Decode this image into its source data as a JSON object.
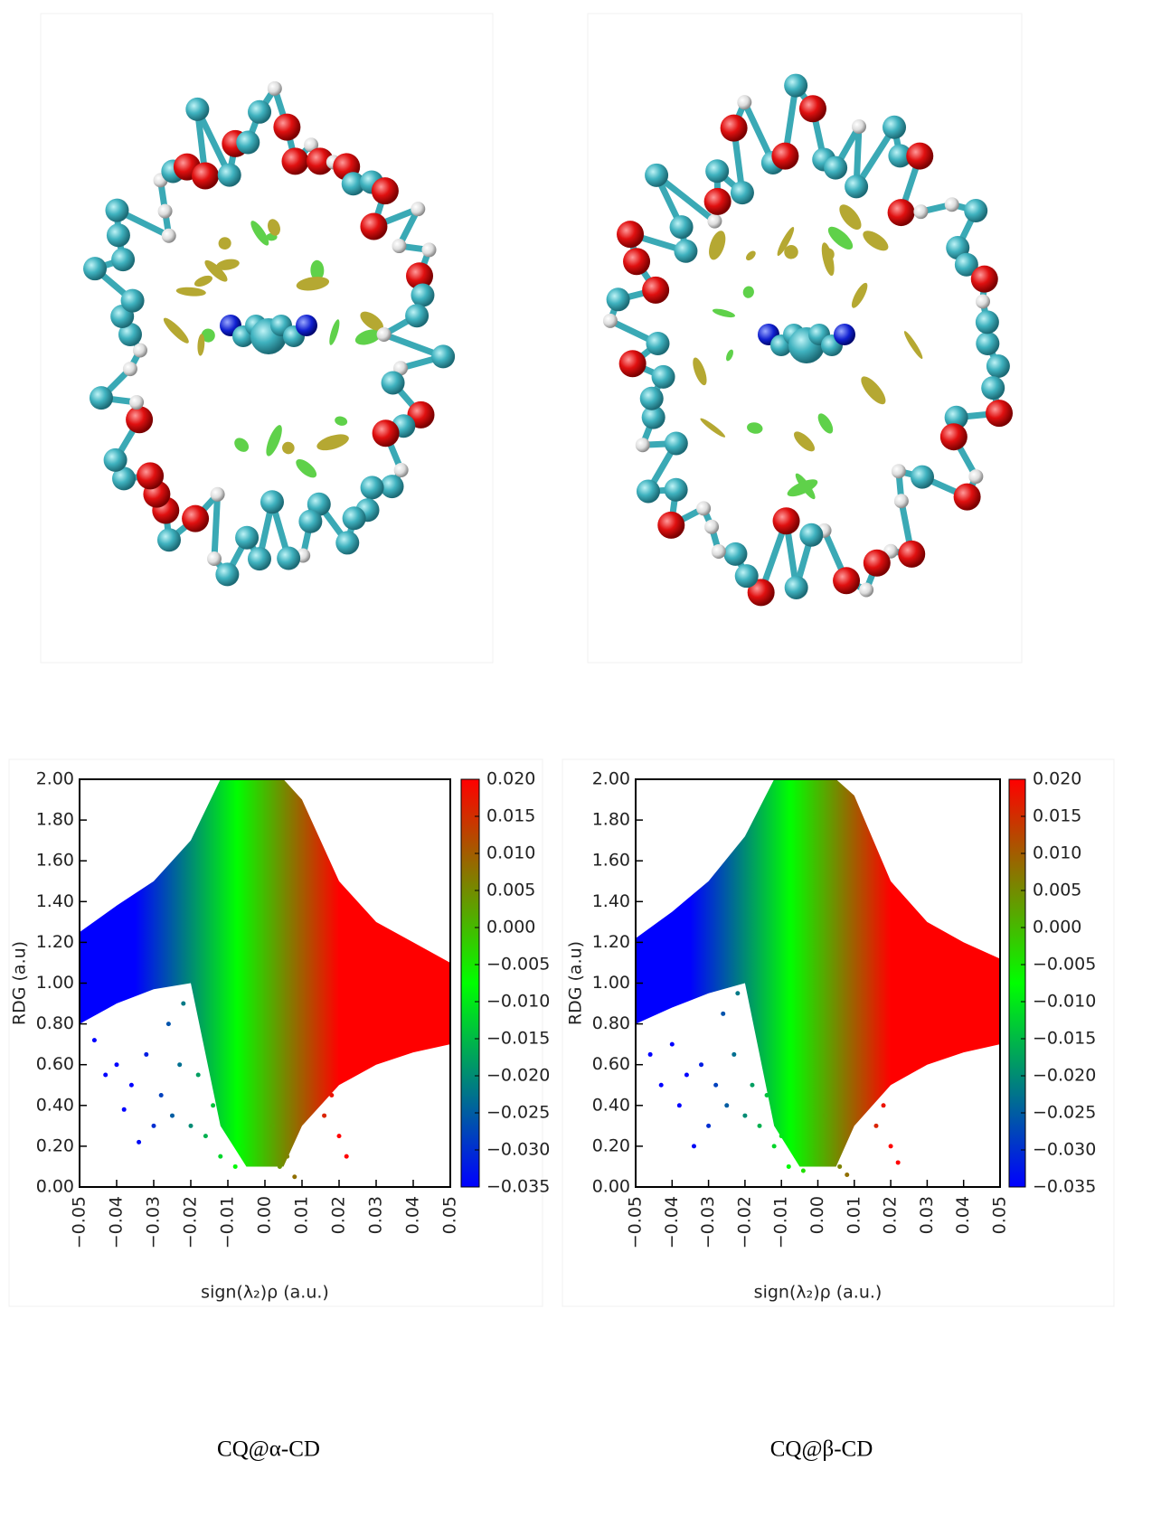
{
  "chart_data": [
    {
      "type": "scatter",
      "caption": "CQ@α-CD",
      "xlabel": "sign(λ₂)ρ (a.u.)",
      "ylabel": "RDG (a.u)",
      "xlim": [
        -0.05,
        0.05
      ],
      "ylim": [
        0,
        2
      ],
      "xticks": [
        {
          "value": -0.05,
          "label": "−0.05"
        },
        {
          "value": -0.04,
          "label": "−0.04"
        },
        {
          "value": -0.03,
          "label": "−0.03"
        },
        {
          "value": -0.02,
          "label": "−0.02"
        },
        {
          "value": -0.01,
          "label": "−0.01"
        },
        {
          "value": 0,
          "label": "0.00"
        },
        {
          "value": 0.01,
          "label": "0.01"
        },
        {
          "value": 0.02,
          "label": "0.02"
        },
        {
          "value": 0.03,
          "label": "0.03"
        },
        {
          "value": 0.04,
          "label": "0.04"
        },
        {
          "value": 0.05,
          "label": "0.05"
        }
      ],
      "yticks": [
        {
          "value": 0,
          "label": "0.00"
        },
        {
          "value": 0.2,
          "label": "0.20"
        },
        {
          "value": 0.4,
          "label": "0.40"
        },
        {
          "value": 0.6,
          "label": "0.60"
        },
        {
          "value": 0.8,
          "label": "0.80"
        },
        {
          "value": 1,
          "label": "1.00"
        },
        {
          "value": 1.2,
          "label": "1.20"
        },
        {
          "value": 1.4,
          "label": "1.40"
        },
        {
          "value": 1.6,
          "label": "1.60"
        },
        {
          "value": 1.8,
          "label": "1.80"
        },
        {
          "value": 2,
          "label": "2.00"
        }
      ],
      "colorbar": {
        "lim": [
          -0.035,
          0.02
        ],
        "colors": [
          "#0000ff",
          "#00ff00",
          "#ff0000"
        ],
        "ticks": [
          {
            "value": 0.02,
            "label": "0.020"
          },
          {
            "value": 0.015,
            "label": "0.015"
          },
          {
            "value": 0.01,
            "label": "0.010"
          },
          {
            "value": 0.005,
            "label": "0.005"
          },
          {
            "value": 0,
            "label": "0.000"
          },
          {
            "value": -0.005,
            "label": "−0.005"
          },
          {
            "value": -0.01,
            "label": "−0.010"
          },
          {
            "value": -0.015,
            "label": "−0.015"
          },
          {
            "value": -0.02,
            "label": "−0.020"
          },
          {
            "value": -0.025,
            "label": "−0.025"
          },
          {
            "value": -0.03,
            "label": "−0.030"
          },
          {
            "value": -0.035,
            "label": "−0.035"
          }
        ]
      },
      "band": {
        "x": [
          -0.05,
          -0.04,
          -0.03,
          -0.02,
          -0.012,
          -0.005,
          0.005,
          0.01,
          0.02,
          0.03,
          0.04,
          0.05
        ],
        "high": [
          1.25,
          1.38,
          1.5,
          1.7,
          2,
          2,
          2,
          1.9,
          1.5,
          1.3,
          1.2,
          1.1
        ],
        "low": [
          0.8,
          0.9,
          0.97,
          1.0,
          0.3,
          0.1,
          0.1,
          0.3,
          0.5,
          0.6,
          0.66,
          0.7
        ]
      },
      "x": [
        -0.046,
        -0.043,
        -0.04,
        -0.038,
        -0.036,
        -0.034,
        -0.032,
        -0.03,
        -0.028,
        -0.026,
        -0.025,
        -0.023,
        -0.022,
        -0.02,
        -0.018,
        -0.016,
        -0.014,
        -0.012,
        -0.01,
        -0.008,
        -0.006,
        -0.004,
        0.002,
        0.004,
        0.006,
        0.008,
        0.016,
        0.018,
        0.02,
        0.022
      ],
      "y": [
        0.72,
        0.55,
        0.6,
        0.38,
        0.5,
        0.22,
        0.65,
        0.3,
        0.45,
        0.8,
        0.35,
        0.6,
        0.9,
        0.3,
        0.55,
        0.25,
        0.4,
        0.15,
        0.3,
        0.1,
        0.2,
        0.12,
        0.3,
        0.1,
        0.15,
        0.05,
        0.35,
        0.45,
        0.25,
        0.15
      ]
    },
    {
      "type": "scatter",
      "caption": "CQ@β-CD",
      "xlabel": "sign(λ₂)ρ (a.u.)",
      "ylabel": "RDG (a.u)",
      "xlim": [
        -0.05,
        0.05
      ],
      "ylim": [
        0,
        2
      ],
      "xticks": [
        {
          "value": -0.05,
          "label": "−0.05"
        },
        {
          "value": -0.04,
          "label": "−0.04"
        },
        {
          "value": -0.03,
          "label": "−0.03"
        },
        {
          "value": -0.02,
          "label": "−0.02"
        },
        {
          "value": -0.01,
          "label": "−0.01"
        },
        {
          "value": 0,
          "label": "0.00"
        },
        {
          "value": 0.01,
          "label": "0.01"
        },
        {
          "value": 0.02,
          "label": "0.02"
        },
        {
          "value": 0.03,
          "label": "0.03"
        },
        {
          "value": 0.04,
          "label": "0.04"
        },
        {
          "value": 0.05,
          "label": "0.05"
        }
      ],
      "yticks": [
        {
          "value": 0,
          "label": "0.00"
        },
        {
          "value": 0.2,
          "label": "0.20"
        },
        {
          "value": 0.4,
          "label": "0.40"
        },
        {
          "value": 0.6,
          "label": "0.60"
        },
        {
          "value": 0.8,
          "label": "0.80"
        },
        {
          "value": 1,
          "label": "1.00"
        },
        {
          "value": 1.2,
          "label": "1.20"
        },
        {
          "value": 1.4,
          "label": "1.40"
        },
        {
          "value": 1.6,
          "label": "1.60"
        },
        {
          "value": 1.8,
          "label": "1.80"
        },
        {
          "value": 2,
          "label": "2.00"
        }
      ],
      "colorbar": {
        "lim": [
          -0.035,
          0.02
        ],
        "colors": [
          "#0000ff",
          "#00ff00",
          "#ff0000"
        ],
        "ticks": [
          {
            "value": 0.02,
            "label": "0.020"
          },
          {
            "value": 0.015,
            "label": "0.015"
          },
          {
            "value": 0.01,
            "label": "0.010"
          },
          {
            "value": 0.005,
            "label": "0.005"
          },
          {
            "value": 0,
            "label": "0.000"
          },
          {
            "value": -0.005,
            "label": "−0.005"
          },
          {
            "value": -0.01,
            "label": "−0.010"
          },
          {
            "value": -0.015,
            "label": "−0.015"
          },
          {
            "value": -0.02,
            "label": "−0.020"
          },
          {
            "value": -0.025,
            "label": "−0.025"
          },
          {
            "value": -0.03,
            "label": "−0.030"
          },
          {
            "value": -0.035,
            "label": "−0.035"
          }
        ]
      },
      "band": {
        "x": [
          -0.05,
          -0.04,
          -0.03,
          -0.02,
          -0.012,
          -0.005,
          0.005,
          0.01,
          0.02,
          0.03,
          0.04,
          0.05
        ],
        "high": [
          1.22,
          1.35,
          1.5,
          1.72,
          2,
          2,
          2,
          1.92,
          1.5,
          1.3,
          1.2,
          1.12
        ],
        "low": [
          0.8,
          0.88,
          0.95,
          1.0,
          0.3,
          0.1,
          0.1,
          0.3,
          0.5,
          0.6,
          0.66,
          0.7
        ]
      },
      "x": [
        -0.046,
        -0.043,
        -0.04,
        -0.038,
        -0.036,
        -0.034,
        -0.032,
        -0.03,
        -0.028,
        -0.026,
        -0.025,
        -0.023,
        -0.022,
        -0.02,
        -0.018,
        -0.016,
        -0.014,
        -0.012,
        -0.01,
        -0.008,
        -0.006,
        -0.004,
        0.002,
        0.004,
        0.006,
        0.008,
        0.016,
        0.018,
        0.02,
        0.022
      ],
      "y": [
        0.65,
        0.5,
        0.7,
        0.4,
        0.55,
        0.2,
        0.6,
        0.3,
        0.5,
        0.85,
        0.4,
        0.65,
        0.95,
        0.35,
        0.5,
        0.3,
        0.45,
        0.2,
        0.25,
        0.1,
        0.15,
        0.08,
        0.35,
        0.12,
        0.1,
        0.06,
        0.3,
        0.4,
        0.2,
        0.12
      ]
    }
  ]
}
